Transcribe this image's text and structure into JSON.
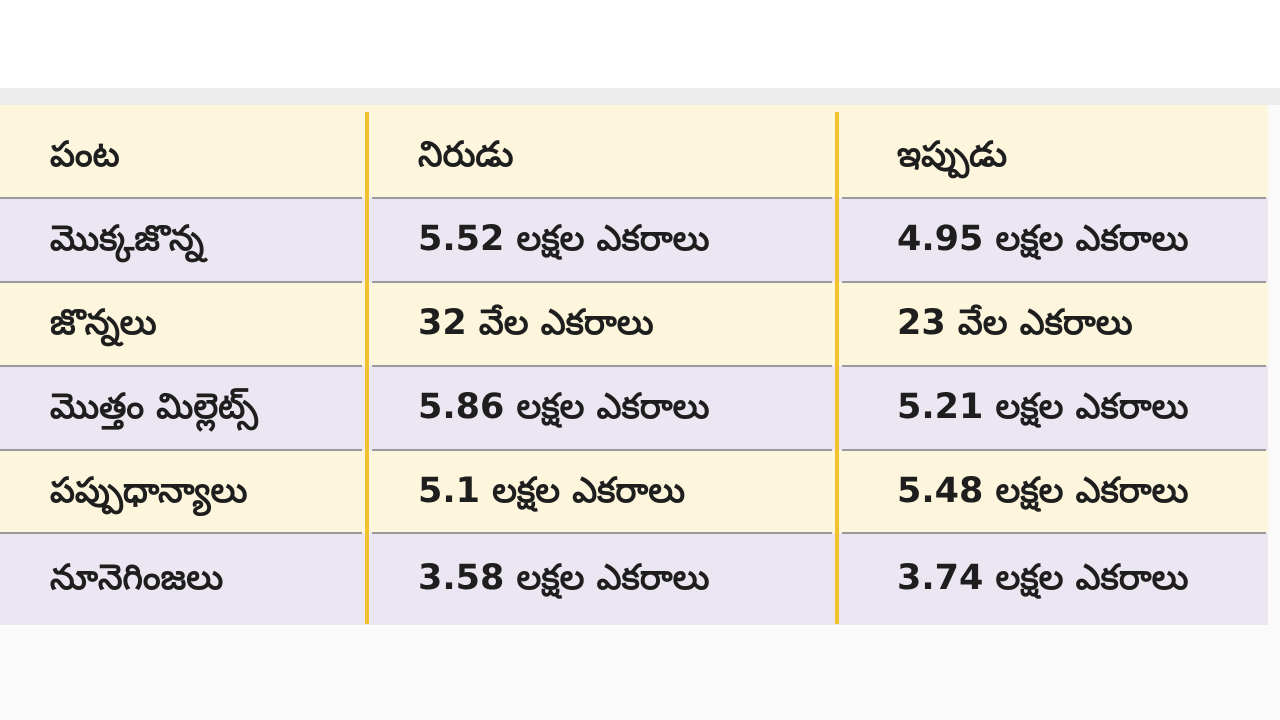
{
  "table": {
    "header": [
      "పంట",
      "నిరుడు",
      "ఇప్పుడు"
    ],
    "rows": [
      [
        "మొక్కజొన్న",
        "5.52 లక్షల ఎకరాలు",
        "4.95 లక్షల ఎకరాలు"
      ],
      [
        "జొన్నలు",
        "32 వేల ఎకరాలు",
        "23 వేల ఎకరాలు"
      ],
      [
        "మొత్తం మిల్లెట్స్",
        "5.86 లక్షల ఎకరాలు",
        "5.21 లక్షల ఎకరాలు"
      ],
      [
        "పప్పుధాన్యాలు",
        "5.1 లక్షల ఎకరాలు",
        "5.48 లక్షల ఎకరాలు"
      ],
      [
        "నూనెగింజలు",
        "3.58 లక్షల ఎకరాలు",
        "3.74 లక్షల ఎకరాలు"
      ]
    ]
  }
}
